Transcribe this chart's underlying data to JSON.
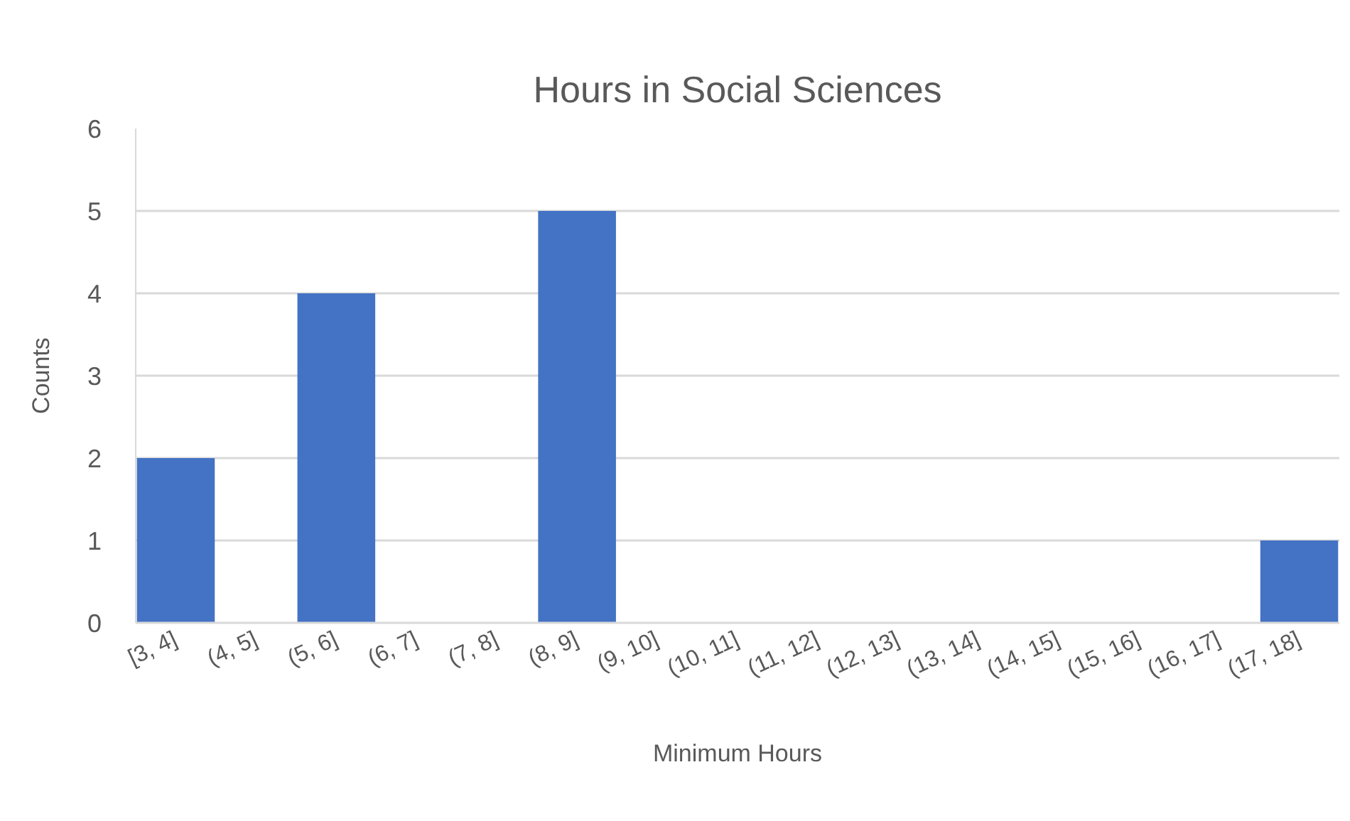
{
  "chart_data": {
    "type": "bar",
    "title": "Hours in Social Sciences",
    "xlabel": "Minimum Hours",
    "ylabel": "Counts",
    "categories": [
      "[3, 4]",
      "(4, 5]",
      "(5, 6]",
      "(6, 7]",
      "(7, 8]",
      "(8, 9]",
      "(9, 10]",
      "(10, 11]",
      "(11, 12]",
      "(12, 13]",
      "(13, 14]",
      "(14, 15]",
      "(15, 16]",
      "(16, 17]",
      "(17, 18]"
    ],
    "values": [
      2,
      0,
      4,
      0,
      0,
      5,
      0,
      0,
      0,
      0,
      0,
      0,
      0,
      0,
      1
    ],
    "color": "#4472c4",
    "ylim": [
      0,
      6
    ],
    "yticks": [
      0,
      1,
      2,
      3,
      4,
      5,
      6
    ],
    "grid": "y"
  }
}
